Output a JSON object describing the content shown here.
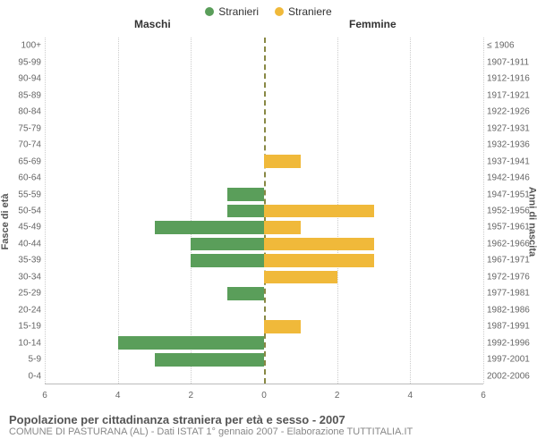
{
  "legend": {
    "male": {
      "label": "Stranieri",
      "color": "#5a9e5a"
    },
    "female": {
      "label": "Straniere",
      "color": "#f0b93a"
    }
  },
  "header": {
    "male_title": "Maschi",
    "female_title": "Femmine"
  },
  "axes": {
    "left_title": "Fasce di età",
    "right_title": "Anni di nascita",
    "xmax": 6,
    "xticks": [
      6,
      4,
      2,
      0,
      2,
      4,
      6
    ],
    "grid_color": "#cccccc",
    "center_color": "#888844"
  },
  "rows": [
    {
      "age": "100+",
      "birth": "≤ 1906",
      "m": 0,
      "f": 0
    },
    {
      "age": "95-99",
      "birth": "1907-1911",
      "m": 0,
      "f": 0
    },
    {
      "age": "90-94",
      "birth": "1912-1916",
      "m": 0,
      "f": 0
    },
    {
      "age": "85-89",
      "birth": "1917-1921",
      "m": 0,
      "f": 0
    },
    {
      "age": "80-84",
      "birth": "1922-1926",
      "m": 0,
      "f": 0
    },
    {
      "age": "75-79",
      "birth": "1927-1931",
      "m": 0,
      "f": 0
    },
    {
      "age": "70-74",
      "birth": "1932-1936",
      "m": 0,
      "f": 0
    },
    {
      "age": "65-69",
      "birth": "1937-1941",
      "m": 0,
      "f": 1
    },
    {
      "age": "60-64",
      "birth": "1942-1946",
      "m": 0,
      "f": 0
    },
    {
      "age": "55-59",
      "birth": "1947-1951",
      "m": 1,
      "f": 0
    },
    {
      "age": "50-54",
      "birth": "1952-1956",
      "m": 1,
      "f": 3
    },
    {
      "age": "45-49",
      "birth": "1957-1961",
      "m": 3,
      "f": 1
    },
    {
      "age": "40-44",
      "birth": "1962-1966",
      "m": 2,
      "f": 3
    },
    {
      "age": "35-39",
      "birth": "1967-1971",
      "m": 2,
      "f": 3
    },
    {
      "age": "30-34",
      "birth": "1972-1976",
      "m": 0,
      "f": 2
    },
    {
      "age": "25-29",
      "birth": "1977-1981",
      "m": 1,
      "f": 0
    },
    {
      "age": "20-24",
      "birth": "1982-1986",
      "m": 0,
      "f": 0
    },
    {
      "age": "15-19",
      "birth": "1987-1991",
      "m": 0,
      "f": 1
    },
    {
      "age": "10-14",
      "birth": "1992-1996",
      "m": 4,
      "f": 0
    },
    {
      "age": "5-9",
      "birth": "1997-2001",
      "m": 3,
      "f": 0
    },
    {
      "age": "0-4",
      "birth": "2002-2006",
      "m": 0,
      "f": 0
    }
  ],
  "footer": {
    "title": "Popolazione per cittadinanza straniera per età e sesso - 2007",
    "subtitle": "COMUNE DI PASTURANA (AL) - Dati ISTAT 1° gennaio 2007 - Elaborazione TUTTITALIA.IT"
  },
  "style": {
    "bar_fill_ratio": 0.8,
    "font_family": "Arial",
    "tick_fontsize": 10,
    "title_fontsize": 13
  }
}
